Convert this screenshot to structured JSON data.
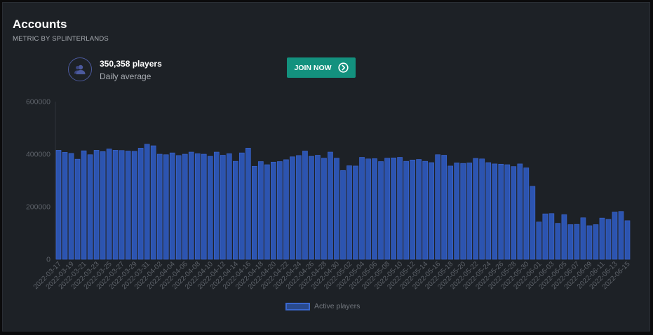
{
  "header": {
    "title": "Accounts",
    "subtitle": "METRIC BY SPLINTERLANDS"
  },
  "stat": {
    "value": "350,358 players",
    "label": "Daily average",
    "icon": "users-icon"
  },
  "join_button": {
    "label": "JOIN NOW",
    "icon": "chevron-right-circle-icon"
  },
  "colors": {
    "bar_fill": "#2c54b0",
    "bar_stroke": "#3f6ad6",
    "accent": "#13917e"
  },
  "chart_data": {
    "type": "bar",
    "series": [
      {
        "name": "Active players",
        "values": [
          415000,
          407000,
          403000,
          381000,
          413000,
          398000,
          415000,
          410000,
          420000,
          415000,
          414000,
          412000,
          411000,
          423000,
          438000,
          432000,
          400000,
          398000,
          405000,
          395000,
          400000,
          408000,
          402000,
          400000,
          392000,
          408000,
          396000,
          402000,
          373000,
          405000,
          423000,
          354000,
          372000,
          360000,
          370000,
          372000,
          379000,
          390000,
          395000,
          412000,
          392000,
          396000,
          385000,
          408000,
          385000,
          338000,
          356000,
          355000,
          388000,
          382000,
          383000,
          372000,
          385000,
          386000,
          388000,
          373000,
          378000,
          380000,
          373000,
          368000,
          398000,
          396000,
          355000,
          367000,
          365000,
          367000,
          384000,
          382000,
          368000,
          363000,
          362000,
          360000,
          353000,
          363000,
          348000,
          278000,
          142000,
          173000,
          174000,
          137000,
          170000,
          132000,
          133000,
          158000,
          128000,
          132000,
          157000,
          152000,
          180000,
          182000,
          147000
        ]
      }
    ],
    "x_start": "2022-03-17",
    "x_end": "2022-06-15",
    "tick_labels": [
      "2022-03-17",
      "2022-03-19",
      "2022-03-21",
      "2022-03-23",
      "2022-03-25",
      "2022-03-27",
      "2022-03-29",
      "2022-03-31",
      "2022-04-02",
      "2022-04-04",
      "2022-04-06",
      "2022-04-08",
      "2022-04-10",
      "2022-04-12",
      "2022-04-14",
      "2022-04-16",
      "2022-04-18",
      "2022-04-20",
      "2022-04-22",
      "2022-04-24",
      "2022-04-26",
      "2022-04-28",
      "2022-04-30",
      "2022-05-02",
      "2022-05-04",
      "2022-05-06",
      "2022-05-08",
      "2022-05-10",
      "2022-05-12",
      "2022-05-14",
      "2022-05-16",
      "2022-05-18",
      "2022-05-20",
      "2022-05-22",
      "2022-05-24",
      "2022-05-26",
      "2022-05-28",
      "2022-05-30",
      "2022-06-01",
      "2022-06-03",
      "2022-06-05",
      "2022-06-07",
      "2022-06-09",
      "2022-06-11",
      "2022-06-13",
      "2022-06-15"
    ],
    "y_ticks": [
      0,
      200000,
      400000,
      600000
    ],
    "ylim": [
      0,
      600000
    ],
    "grid": false,
    "legend": "bottom-center"
  }
}
